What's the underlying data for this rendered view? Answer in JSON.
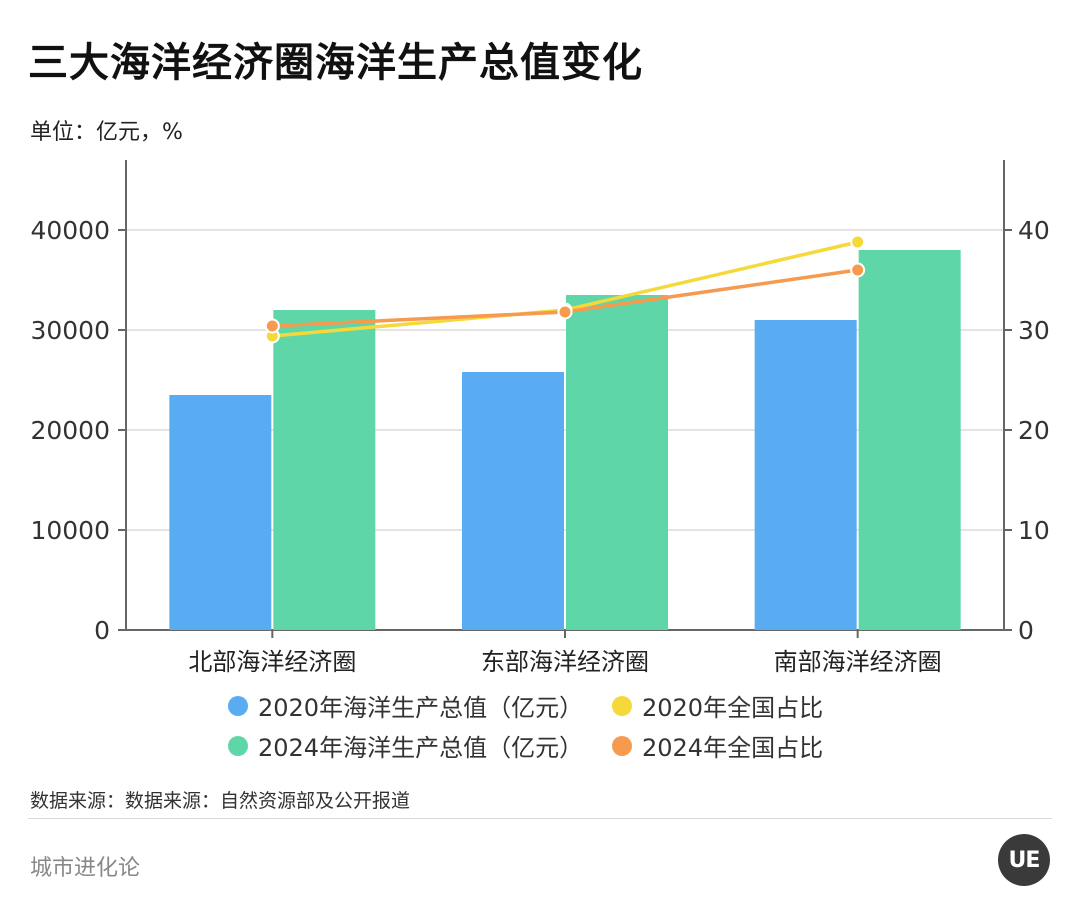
{
  "title": "三大海洋经济圈海洋生产总值变化",
  "unit": "单位：亿元，%",
  "source": "数据来源：数据来源：自然资源部及公开报道",
  "brand": "城市进化论",
  "logo_text": "UE",
  "colors": {
    "bar2020": "#5aacf2",
    "bar2024": "#5fd6a8",
    "line2020": "#f5d83a",
    "line2024": "#f59a4e",
    "axis": "#666666",
    "grid": "#dcdcdc"
  },
  "chart_data": {
    "type": "bar",
    "categories": [
      "北部海洋经济圈",
      "东部海洋经济圈",
      "南部海洋经济圈"
    ],
    "series": [
      {
        "name": "2020年海洋生产总值（亿元）",
        "type": "bar",
        "axis": "left",
        "values": [
          23500,
          25800,
          31000
        ]
      },
      {
        "name": "2024年海洋生产总值（亿元）",
        "type": "bar",
        "axis": "left",
        "values": [
          32000,
          33500,
          38000
        ]
      },
      {
        "name": "2020年全国占比",
        "type": "line",
        "axis": "right",
        "values": [
          29.4,
          32.0,
          38.8
        ]
      },
      {
        "name": "2024年全国占比",
        "type": "line",
        "axis": "right",
        "values": [
          30.4,
          31.8,
          36.0
        ]
      }
    ],
    "y_left": {
      "min": 0,
      "max": 45000,
      "ticks": [
        0,
        10000,
        20000,
        30000,
        40000
      ]
    },
    "y_right": {
      "min": 0,
      "max": 45,
      "ticks": [
        0,
        10,
        20,
        30,
        40
      ]
    },
    "grid": true,
    "legend_position": "bottom"
  }
}
